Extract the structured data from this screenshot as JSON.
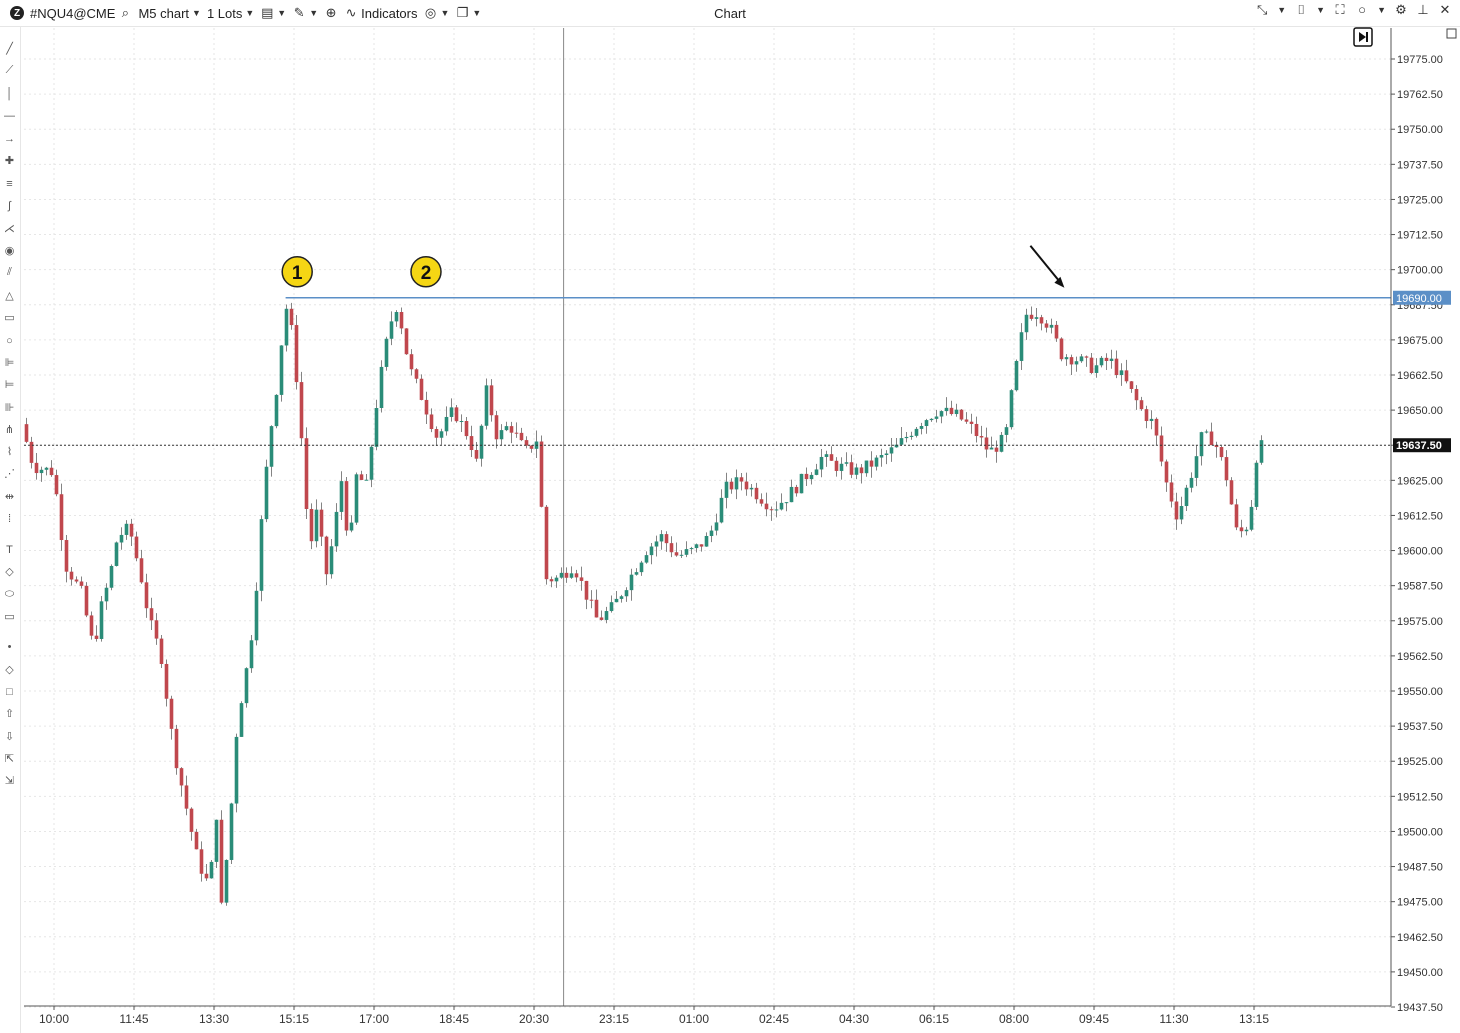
{
  "toolbar": {
    "logo": "Z",
    "symbol": "#NQU4@CME",
    "chart_type": "M5 chart",
    "lots": "1 Lots",
    "indicators": "Indicators"
  },
  "window": {
    "title": "Chart"
  },
  "left_tools": [
    "trend-line-icon",
    "ray-icon",
    "vertical-line-icon",
    "horizontal-line-icon",
    "arrow-icon",
    "cross-icon",
    "parallel-channel-icon",
    "curve-icon",
    "fib-fan-icon",
    "spiral-icon",
    "pitchfork-icon",
    "triangle-icon",
    "rectangle-icon",
    "circle-icon",
    "fib-retracement-icon",
    "fib-extension-icon",
    "fib-time-icon",
    "gann-icon",
    "polyline-icon",
    "path-icon",
    "measure-icon",
    "ruler-icon",
    "text-icon",
    "tag-icon",
    "callout-icon",
    "note-icon",
    "dot-icon",
    "diamond-icon",
    "square-icon",
    "arrow-up-icon",
    "arrow-down-icon",
    "buy-order-icon",
    "sell-order-icon"
  ],
  "chart_data": {
    "type": "candlestick",
    "symbol": "#NQU4@CME",
    "timeframe": "M5",
    "ylim": [
      19437.5,
      19787.5
    ],
    "y_ticks": [
      "19775.00",
      "19762.50",
      "19750.00",
      "19737.50",
      "19725.00",
      "19712.50",
      "19700.00",
      "19687.50",
      "19675.00",
      "19662.50",
      "19650.00",
      "19637.50",
      "19625.00",
      "19612.50",
      "19600.00",
      "19587.50",
      "19575.00",
      "19562.50",
      "19550.00",
      "19537.50",
      "19525.00",
      "19512.50",
      "19500.00",
      "19487.50",
      "19475.00",
      "19462.50",
      "19450.00",
      "19437.50"
    ],
    "x_ticks": [
      "10:00",
      "11:45",
      "13:30",
      "15:15",
      "17:00",
      "18:45",
      "20:30",
      "23:15",
      "01:00",
      "02:45",
      "04:30",
      "06:15",
      "08:00",
      "09:45",
      "11:30",
      "13:15"
    ],
    "resistance_level": {
      "value": 19690.0,
      "label": "19690.00",
      "color": "#5b8fc7"
    },
    "current_price": {
      "value": 19637.5,
      "label": "19637.50"
    },
    "markers": [
      {
        "label": "1",
        "time_index": 3.04,
        "color": "#f5d614"
      },
      {
        "label": "2",
        "time_index": 4.65,
        "color": "#f5d614"
      }
    ],
    "arrow_annotation": {
      "time_index": 12.63,
      "value": 19690.0
    },
    "session_separator_time_index": 6.37,
    "price_path": [
      [
        0.0,
        19645
      ],
      [
        0.15,
        19630
      ],
      [
        0.4,
        19628
      ],
      [
        0.55,
        19595
      ],
      [
        0.75,
        19585
      ],
      [
        0.9,
        19565
      ],
      [
        1.0,
        19580
      ],
      [
        1.1,
        19590
      ],
      [
        1.2,
        19605
      ],
      [
        1.35,
        19608
      ],
      [
        1.5,
        19590
      ],
      [
        1.6,
        19575
      ],
      [
        1.75,
        19562
      ],
      [
        1.9,
        19530
      ],
      [
        2.05,
        19510
      ],
      [
        2.2,
        19490
      ],
      [
        2.35,
        19480
      ],
      [
        2.45,
        19510
      ],
      [
        2.5,
        19473
      ],
      [
        2.6,
        19500
      ],
      [
        2.7,
        19540
      ],
      [
        2.8,
        19555
      ],
      [
        2.9,
        19575
      ],
      [
        3.0,
        19610
      ],
      [
        3.1,
        19640
      ],
      [
        3.2,
        19660
      ],
      [
        3.3,
        19688
      ],
      [
        3.4,
        19675
      ],
      [
        3.5,
        19640
      ],
      [
        3.6,
        19600
      ],
      [
        3.7,
        19615
      ],
      [
        3.8,
        19590
      ],
      [
        3.9,
        19605
      ],
      [
        4.0,
        19625
      ],
      [
        4.1,
        19600
      ],
      [
        4.2,
        19630
      ],
      [
        4.3,
        19620
      ],
      [
        4.45,
        19655
      ],
      [
        4.6,
        19680
      ],
      [
        4.7,
        19688
      ],
      [
        4.85,
        19665
      ],
      [
        5.0,
        19655
      ],
      [
        5.2,
        19640
      ],
      [
        5.4,
        19650
      ],
      [
        5.6,
        19640
      ],
      [
        5.7,
        19630
      ],
      [
        5.8,
        19658
      ],
      [
        5.95,
        19640
      ],
      [
        6.1,
        19645
      ],
      [
        6.3,
        19635
      ],
      [
        6.45,
        19640
      ],
      [
        6.55,
        19590
      ],
      [
        6.7,
        19590
      ],
      [
        6.9,
        19595
      ],
      [
        7.05,
        19585
      ],
      [
        7.2,
        19575
      ],
      [
        7.4,
        19580
      ],
      [
        7.6,
        19590
      ],
      [
        7.8,
        19600
      ],
      [
        8.0,
        19605
      ],
      [
        8.2,
        19598
      ],
      [
        8.4,
        19600
      ],
      [
        8.6,
        19605
      ],
      [
        8.8,
        19622
      ],
      [
        9.0,
        19625
      ],
      [
        9.2,
        19620
      ],
      [
        9.4,
        19615
      ],
      [
        9.6,
        19620
      ],
      [
        9.85,
        19628
      ],
      [
        10.0,
        19633
      ],
      [
        10.2,
        19630
      ],
      [
        10.45,
        19628
      ],
      [
        10.7,
        19632
      ],
      [
        10.95,
        19637
      ],
      [
        11.2,
        19645
      ],
      [
        11.45,
        19650
      ],
      [
        11.7,
        19648
      ],
      [
        11.9,
        19643
      ],
      [
        12.1,
        19635
      ],
      [
        12.3,
        19640
      ],
      [
        12.4,
        19660
      ],
      [
        12.55,
        19684
      ],
      [
        12.7,
        19685
      ],
      [
        12.85,
        19680
      ],
      [
        13.0,
        19670
      ],
      [
        13.2,
        19668
      ],
      [
        13.4,
        19665
      ],
      [
        13.6,
        19668
      ],
      [
        13.8,
        19660
      ],
      [
        14.0,
        19650
      ],
      [
        14.15,
        19645
      ],
      [
        14.3,
        19625
      ],
      [
        14.45,
        19612
      ],
      [
        14.6,
        19625
      ],
      [
        14.75,
        19640
      ],
      [
        14.9,
        19640
      ],
      [
        15.05,
        19628
      ],
      [
        15.2,
        19605
      ],
      [
        15.35,
        19610
      ],
      [
        15.45,
        19637
      ]
    ]
  }
}
